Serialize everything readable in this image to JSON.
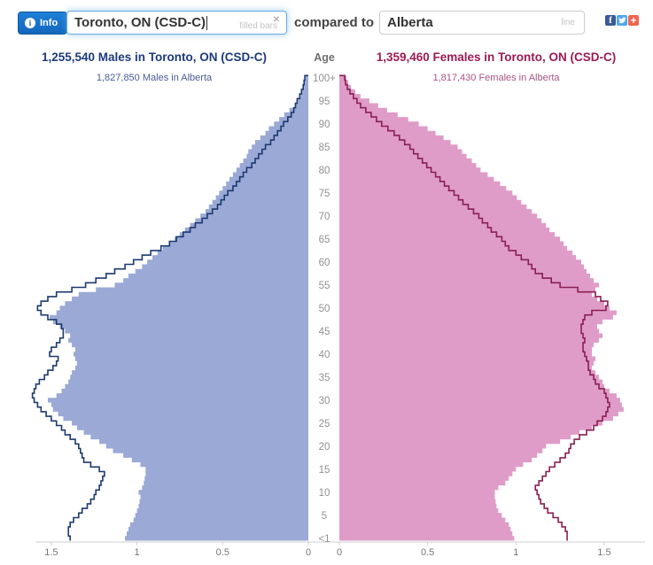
{
  "toolbar": {
    "info_label": "Info",
    "primary_region": {
      "value": "Toronto, ON (CSD-C)",
      "hint": "filled bars"
    },
    "clear_icon": "×",
    "compare_label": "compared to",
    "secondary_region": {
      "value": "Alberta",
      "hint": "line"
    }
  },
  "chart": {
    "age_header": "Age",
    "males": {
      "title": "1,255,540 Males in Toronto, ON (CSD-C)",
      "subtitle": "1,827,850 Males in Alberta"
    },
    "females": {
      "title": "1,359,460 Females in Toronto, ON (CSD-C)",
      "subtitle": "1,817,430 Females in Alberta"
    }
  },
  "colors": {
    "male_fill": "#9aa9d6",
    "male_line": "#1c3a6e",
    "female_fill": "#df9cc8",
    "female_line": "#8a1f53",
    "axis": "#cfcfcf",
    "tick_text": "#777777",
    "age_text": "#919191",
    "facebook": "#3b5998",
    "twitter": "#4da7f0",
    "share_plus": "#f0654f",
    "info_button": "#1467bd",
    "focus_border": "#66afe9"
  },
  "chart_data": {
    "type": "bar",
    "subtype": "population-pyramid: filled horizontal bars (Toronto) with step-line overlay (Alberta), one bar per single year of age",
    "x_unit": "percent of total population",
    "xlim_each_side": [
      0,
      1.75
    ],
    "age_ticks": [
      {
        "label": "100+",
        "age": 100
      },
      {
        "label": "95",
        "age": 95
      },
      {
        "label": "90",
        "age": 90
      },
      {
        "label": "85",
        "age": 85
      },
      {
        "label": "80",
        "age": 80
      },
      {
        "label": "75",
        "age": 75
      },
      {
        "label": "70",
        "age": 70
      },
      {
        "label": "65",
        "age": 65
      },
      {
        "label": "60",
        "age": 60
      },
      {
        "label": "55",
        "age": 55
      },
      {
        "label": "50",
        "age": 50
      },
      {
        "label": "45",
        "age": 45
      },
      {
        "label": "40",
        "age": 40
      },
      {
        "label": "35",
        "age": 35
      },
      {
        "label": "30",
        "age": 30
      },
      {
        "label": "25",
        "age": 25
      },
      {
        "label": "20",
        "age": 20
      },
      {
        "label": "15",
        "age": 15
      },
      {
        "label": "10",
        "age": 10
      },
      {
        "label": "5",
        "age": 5
      },
      {
        "label": "<1",
        "age": 0
      }
    ],
    "x_ticks_left": [
      1.5,
      1,
      0.5,
      0
    ],
    "x_ticks_right": [
      0,
      0.5,
      1,
      1.5
    ],
    "ages_note": "values arrays are ages 0 through 100 inclusive",
    "series": [
      {
        "name": "Males in Toronto, ON (CSD-C)",
        "display": "filled-bars",
        "side": "left",
        "color": "#9aa9d6",
        "values": [
          1.07,
          1.06,
          1.05,
          1.04,
          1.02,
          1.01,
          1.0,
          0.99,
          0.985,
          0.98,
          0.99,
          0.97,
          0.96,
          0.955,
          0.95,
          0.95,
          0.98,
          1.03,
          1.08,
          1.14,
          1.18,
          1.22,
          1.27,
          1.31,
          1.35,
          1.38,
          1.43,
          1.46,
          1.49,
          1.5,
          1.52,
          1.47,
          1.44,
          1.42,
          1.4,
          1.39,
          1.38,
          1.36,
          1.35,
          1.36,
          1.37,
          1.36,
          1.38,
          1.4,
          1.39,
          1.42,
          1.45,
          1.49,
          1.51,
          1.47,
          1.45,
          1.42,
          1.38,
          1.34,
          1.24,
          1.13,
          1.08,
          1.05,
          1.01,
          0.97,
          0.94,
          0.91,
          0.88,
          0.85,
          0.81,
          0.78,
          0.75,
          0.72,
          0.69,
          0.66,
          0.63,
          0.6,
          0.58,
          0.56,
          0.54,
          0.52,
          0.5,
          0.48,
          0.46,
          0.44,
          0.42,
          0.4,
          0.38,
          0.36,
          0.35,
          0.33,
          0.31,
          0.28,
          0.25,
          0.23,
          0.2,
          0.17,
          0.14,
          0.11,
          0.08,
          0.06,
          0.045,
          0.035,
          0.025,
          0.02,
          0.015
        ]
      },
      {
        "name": "Males in Alberta",
        "display": "line",
        "side": "left",
        "color": "#1c3a6e",
        "values": [
          1.39,
          1.4,
          1.4,
          1.39,
          1.37,
          1.34,
          1.32,
          1.29,
          1.27,
          1.25,
          1.24,
          1.22,
          1.21,
          1.2,
          1.19,
          1.22,
          1.27,
          1.31,
          1.32,
          1.33,
          1.34,
          1.36,
          1.39,
          1.42,
          1.44,
          1.47,
          1.5,
          1.53,
          1.56,
          1.58,
          1.6,
          1.61,
          1.6,
          1.59,
          1.57,
          1.54,
          1.52,
          1.49,
          1.47,
          1.46,
          1.51,
          1.5,
          1.47,
          1.45,
          1.43,
          1.43,
          1.44,
          1.47,
          1.52,
          1.56,
          1.58,
          1.56,
          1.52,
          1.47,
          1.38,
          1.3,
          1.24,
          1.18,
          1.13,
          1.07,
          1.02,
          0.97,
          0.92,
          0.86,
          0.81,
          0.77,
          0.73,
          0.69,
          0.66,
          0.62,
          0.59,
          0.56,
          0.53,
          0.51,
          0.49,
          0.47,
          0.44,
          0.42,
          0.4,
          0.38,
          0.36,
          0.33,
          0.31,
          0.29,
          0.27,
          0.25,
          0.22,
          0.2,
          0.18,
          0.16,
          0.145,
          0.12,
          0.1,
          0.085,
          0.075,
          0.065,
          0.05,
          0.04,
          0.03,
          0.025,
          0.02
        ]
      },
      {
        "name": "Females in Toronto, ON (CSD-C)",
        "display": "filled-bars",
        "side": "right",
        "color": "#df9cc8",
        "values": [
          0.99,
          0.98,
          0.97,
          0.96,
          0.94,
          0.92,
          0.9,
          0.89,
          0.885,
          0.88,
          0.88,
          0.9,
          0.94,
          0.96,
          0.98,
          1.0,
          1.04,
          1.09,
          1.12,
          1.15,
          1.17,
          1.25,
          1.31,
          1.36,
          1.43,
          1.49,
          1.55,
          1.58,
          1.61,
          1.6,
          1.59,
          1.57,
          1.53,
          1.5,
          1.49,
          1.47,
          1.45,
          1.43,
          1.44,
          1.45,
          1.43,
          1.43,
          1.44,
          1.47,
          1.49,
          1.47,
          1.46,
          1.49,
          1.55,
          1.57,
          1.53,
          1.5,
          1.46,
          1.43,
          1.45,
          1.47,
          1.44,
          1.42,
          1.4,
          1.385,
          1.37,
          1.34,
          1.32,
          1.29,
          1.27,
          1.25,
          1.22,
          1.19,
          1.17,
          1.145,
          1.12,
          1.09,
          1.06,
          1.03,
          1.005,
          0.98,
          0.945,
          0.91,
          0.875,
          0.84,
          0.8,
          0.775,
          0.75,
          0.72,
          0.695,
          0.67,
          0.63,
          0.59,
          0.545,
          0.5,
          0.45,
          0.39,
          0.33,
          0.27,
          0.22,
          0.17,
          0.12,
          0.09,
          0.065,
          0.05,
          0.04
        ]
      },
      {
        "name": "Females in Alberta",
        "display": "line",
        "side": "right",
        "color": "#8a1f53",
        "values": [
          1.29,
          1.29,
          1.28,
          1.26,
          1.24,
          1.21,
          1.18,
          1.16,
          1.14,
          1.13,
          1.12,
          1.11,
          1.13,
          1.15,
          1.17,
          1.19,
          1.22,
          1.25,
          1.28,
          1.3,
          1.31,
          1.33,
          1.36,
          1.4,
          1.44,
          1.46,
          1.49,
          1.51,
          1.52,
          1.53,
          1.52,
          1.51,
          1.5,
          1.47,
          1.45,
          1.44,
          1.42,
          1.41,
          1.41,
          1.4,
          1.39,
          1.38,
          1.38,
          1.39,
          1.38,
          1.37,
          1.37,
          1.38,
          1.39,
          1.43,
          1.51,
          1.52,
          1.48,
          1.45,
          1.35,
          1.25,
          1.2,
          1.15,
          1.11,
          1.09,
          1.07,
          1.03,
          1.0,
          0.96,
          0.94,
          0.92,
          0.89,
          0.86,
          0.84,
          0.81,
          0.79,
          0.76,
          0.73,
          0.7,
          0.675,
          0.65,
          0.62,
          0.595,
          0.57,
          0.545,
          0.52,
          0.495,
          0.47,
          0.445,
          0.42,
          0.4,
          0.37,
          0.34,
          0.31,
          0.275,
          0.24,
          0.21,
          0.18,
          0.15,
          0.12,
          0.1,
          0.08,
          0.06,
          0.045,
          0.035,
          0.03
        ]
      }
    ]
  }
}
